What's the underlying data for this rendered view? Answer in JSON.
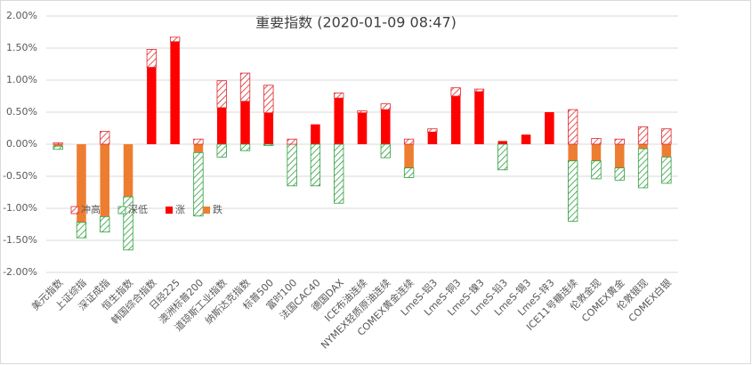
{
  "chart_data": {
    "type": "bar",
    "stacked": true,
    "title": "重要指数 (2020-01-09 08:47)",
    "categories": [
      "美元指数",
      "上证综指",
      "深证成指",
      "恒生指数",
      "韩国综合指数",
      "日经225",
      "澳洲标普200",
      "道琼斯工业指数",
      "纳斯达克指数",
      "标普500",
      "富时100",
      "法国CAC40",
      "德国DAX",
      "ICE布油连续",
      "NYMEX轻质原油连续",
      "COMEX黄金连续",
      "LmeS-铝3",
      "LmeS-铜3",
      "LmeS-镍3",
      "LmeS-铅3",
      "LmeS-锡3",
      "LmeS-锌3",
      "ICE11号糖连续",
      "伦敦金现",
      "COMEX黄金",
      "伦敦银现",
      "COMEX白银"
    ],
    "series": [
      {
        "name": "冲高",
        "color": "#e0262b",
        "pattern": "hatch",
        "values": [
          0.02,
          0,
          0.2,
          0,
          0.28,
          0.07,
          0.08,
          0.42,
          0.44,
          0.43,
          0.08,
          0,
          0.08,
          0.03,
          0.09,
          0.08,
          0.05,
          0.13,
          0.04,
          0,
          0,
          0,
          0.54,
          0.09,
          0.08,
          0.27,
          0.24
        ]
      },
      {
        "name": "深低",
        "color": "#2e9e3e",
        "pattern": "hatch",
        "values": [
          -0.05,
          -0.24,
          -0.24,
          -0.83,
          0,
          0,
          -0.99,
          -0.2,
          -0.1,
          -0.02,
          -0.65,
          -0.65,
          -0.92,
          0,
          -0.21,
          -0.15,
          0,
          0,
          0,
          -0.4,
          0,
          0,
          -0.94,
          -0.28,
          -0.19,
          -0.61,
          -0.41
        ]
      },
      {
        "name": "涨",
        "color": "#ff0000",
        "values": [
          0,
          0,
          0,
          0,
          1.2,
          1.6,
          0,
          0.57,
          0.67,
          0.49,
          0,
          0.31,
          0.72,
          0.49,
          0.54,
          0,
          0.19,
          0.75,
          0.82,
          0.05,
          0.15,
          0.5,
          0,
          0,
          0,
          0,
          0
        ]
      },
      {
        "name": "跌",
        "color": "#ed7d31",
        "values": [
          -0.03,
          -1.22,
          -1.13,
          -0.82,
          0,
          0,
          -0.13,
          0,
          0,
          0,
          0,
          0,
          0,
          0,
          0,
          -0.37,
          0,
          0,
          0,
          0,
          0,
          0,
          -0.26,
          -0.26,
          -0.37,
          -0.07,
          -0.2
        ]
      }
    ],
    "ylim": [
      -2,
      2
    ],
    "yticks": [
      {
        "value": -2,
        "label": "-2.00%"
      },
      {
        "value": -1.5,
        "label": "-1.50%"
      },
      {
        "value": -1,
        "label": "-1.00%"
      },
      {
        "value": -0.5,
        "label": "-0.50%"
      },
      {
        "value": 0,
        "label": "0.00%"
      },
      {
        "value": 0.5,
        "label": "0.50%"
      },
      {
        "value": 1,
        "label": "1.00%"
      },
      {
        "value": 1.5,
        "label": "1.50%"
      },
      {
        "value": 2,
        "label": "2.00%"
      }
    ],
    "grid": true
  }
}
